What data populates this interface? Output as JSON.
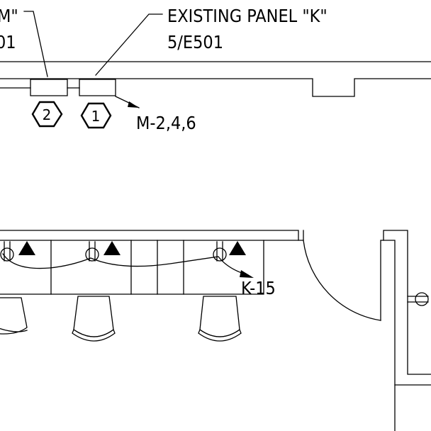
{
  "labels": {
    "panel_m_name_fragment": "M\"",
    "panel_m_ref_fragment": "01",
    "panel_k_name": "EXISTING PANEL \"K\"",
    "panel_k_ref": "5/E501",
    "homerun_m": "M-2,4,6",
    "homerun_k": "K-15"
  },
  "keynotes": [
    "2",
    "1"
  ]
}
